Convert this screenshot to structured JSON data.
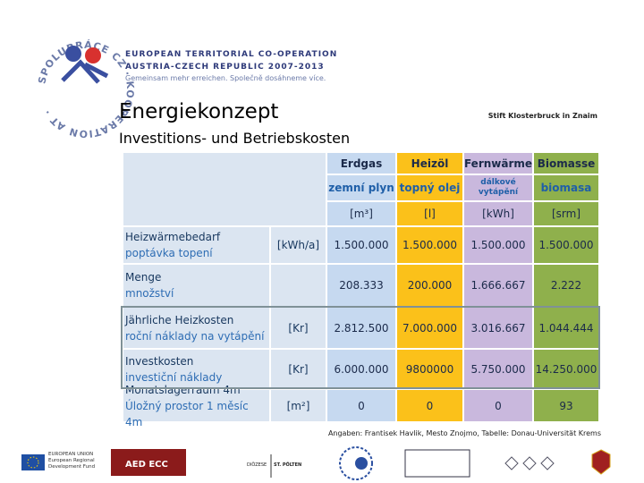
{
  "header": {
    "logo_ring": "SPOLUPRÁCE CZ · KOOPERATION AT ·",
    "program_lines": [
      "EUROPEAN TERRITORIAL CO-OPERATION",
      "AUSTRIA-CZECH REPUBLIC 2007-2013",
      "Gemeinsam mehr erreichen. Společně dosáhneme více."
    ]
  },
  "slide": {
    "title": "Energiekonzept",
    "location": "Stift Klosterbruck in Znaim",
    "subtitle": "Investitions- und Betriebskosten"
  },
  "table": {
    "columns": [
      {
        "name": "Erdgas",
        "name_cz": "zemní plyn",
        "unit": "[m³]"
      },
      {
        "name": "Heizöl",
        "name_cz": "topný olej",
        "unit": "[l]"
      },
      {
        "name": "Fernwärme",
        "name_cz": "dálkové vytápění",
        "unit": "[kWh]"
      },
      {
        "name": "Biomasse",
        "name_cz": "biomasa",
        "unit": "[srm]"
      }
    ],
    "rows": [
      {
        "label": "Heizwärmebedarf",
        "label_cz": "poptávka topení",
        "unit": "[kWh/a]",
        "values": [
          "1.500.000",
          "1.500.000",
          "1.500.000",
          "1.500.000"
        ]
      },
      {
        "label": "Menge",
        "label_cz": "množství",
        "unit": "",
        "values": [
          "208.333",
          "200.000",
          "1.666.667",
          "2.222"
        ]
      },
      {
        "label": "Jährliche Heizkosten",
        "label_cz": "roční náklady na vytápění",
        "unit": "[Kr]",
        "values": [
          "2.812.500",
          "7.000.000",
          "3.016.667",
          "1.044.444"
        ]
      },
      {
        "label": "Investkosten",
        "label_cz": "investiční náklady",
        "unit": "[Kr]",
        "values": [
          "6.000.000",
          "9800000",
          "5.750.000",
          "14.250.000"
        ]
      },
      {
        "label": "Monatslagerraum 4m",
        "label_cz": "Úložný prostor 1 měsíc 4m",
        "unit": "[m²]",
        "values": [
          "0",
          "0",
          "0",
          "93"
        ]
      }
    ]
  },
  "note": "Angaben: Frantisek Havlik, Mesto Znojmo, Tabelle: Donau-Universität Krems",
  "footer": {
    "eu": "EUROPEAN UNION European Regional Development Fund",
    "aed": "AED ECC",
    "diocese": "DIÖZESE",
    "diocese_city": "ST. PÖLTEN"
  }
}
